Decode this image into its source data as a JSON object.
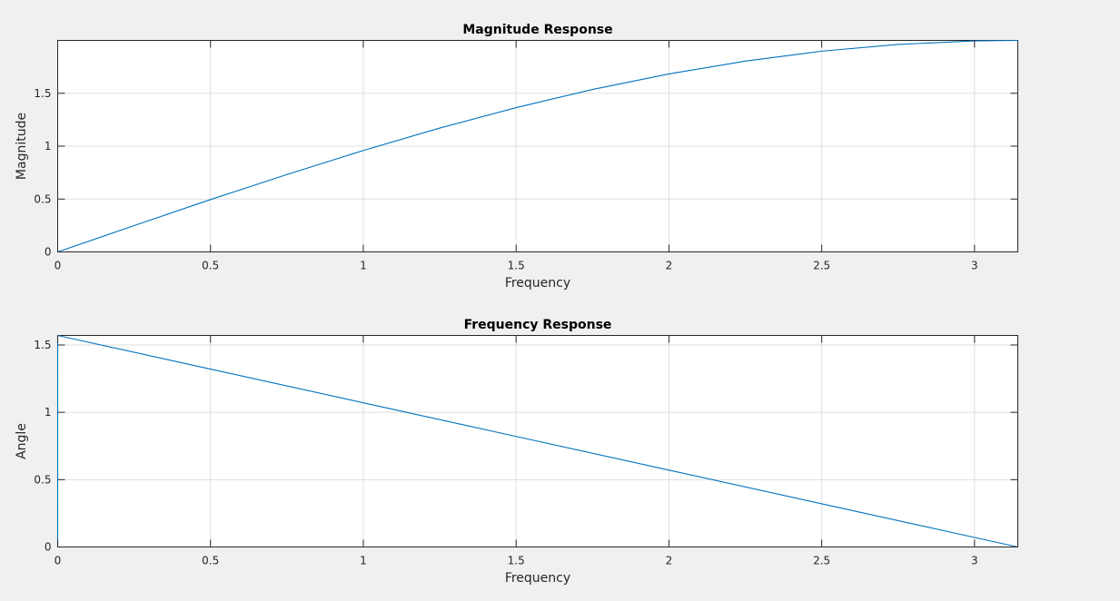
{
  "chart_data": [
    {
      "type": "line",
      "title": "Magnitude Response",
      "xlabel": "Frequency",
      "ylabel": "Magnitude",
      "xlim": [
        0,
        3.14159
      ],
      "ylim": [
        0,
        2
      ],
      "grid": true,
      "xticks": [
        0,
        0.5,
        1,
        1.5,
        2,
        2.5,
        3
      ],
      "xtick_labels": [
        "0",
        "0.5",
        "1",
        "1.5",
        "2",
        "2.5",
        "3"
      ],
      "yticks": [
        0,
        0.5,
        1,
        1.5
      ],
      "ytick_labels": [
        "0",
        "0.5",
        "1",
        "1.5"
      ],
      "series": [
        {
          "color": "#0072bd",
          "x": [
            0,
            0.25,
            0.5,
            0.75,
            1,
            1.25,
            1.5,
            1.75,
            2,
            2.25,
            2.5,
            2.75,
            3,
            3.14159
          ],
          "y": [
            0,
            0.249,
            0.495,
            0.732,
            0.959,
            1.171,
            1.364,
            1.536,
            1.683,
            1.804,
            1.898,
            1.962,
            1.995,
            2.0
          ]
        }
      ]
    },
    {
      "type": "line",
      "title": "Frequency Response",
      "xlabel": "Frequency",
      "ylabel": "Angle",
      "xlim": [
        0,
        3.14159
      ],
      "ylim": [
        0,
        1.5708
      ],
      "grid": true,
      "xticks": [
        0,
        0.5,
        1,
        1.5,
        2,
        2.5,
        3
      ],
      "xtick_labels": [
        "0",
        "0.5",
        "1",
        "1.5",
        "2",
        "2.5",
        "3"
      ],
      "yticks": [
        0,
        0.5,
        1,
        1.5
      ],
      "ytick_labels": [
        "0",
        "0.5",
        "1",
        "1.5"
      ],
      "series": [
        {
          "color": "#0072bd",
          "x": [
            0,
            0.0001,
            0.5,
            1,
            1.5,
            2,
            2.5,
            3,
            3.14159
          ],
          "y": [
            0,
            1.5707,
            1.3208,
            1.0708,
            0.8208,
            0.5708,
            0.3208,
            0.0708,
            0
          ]
        }
      ]
    }
  ]
}
